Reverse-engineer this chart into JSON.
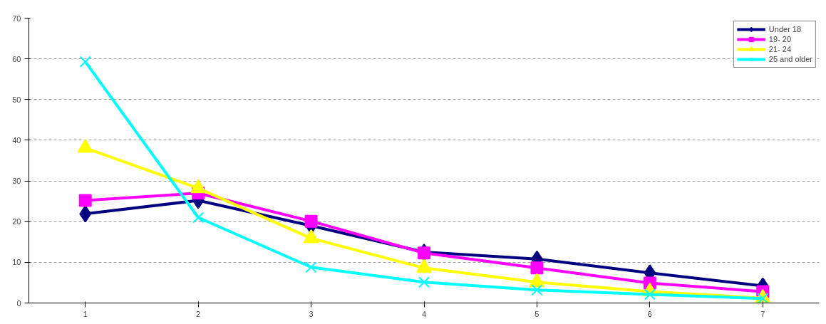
{
  "chart_data": {
    "type": "line",
    "categories": [
      "1",
      "2",
      "3",
      "4",
      "5",
      "6",
      "7"
    ],
    "series": [
      {
        "name": "Under 18",
        "color": "#000080",
        "marker": "diamond",
        "values": [
          21.9,
          25.2,
          19.0,
          12.5,
          10.8,
          7.4,
          4.2
        ]
      },
      {
        "name": "19- 20",
        "color": "#ff00ff",
        "marker": "square",
        "values": [
          25.2,
          27.0,
          20.1,
          12.3,
          8.6,
          4.9,
          2.8
        ]
      },
      {
        "name": "21- 24",
        "color": "#ffff00",
        "marker": "triangle",
        "values": [
          38.1,
          28.2,
          15.9,
          8.6,
          5.1,
          2.8,
          1.2
        ]
      },
      {
        "name": "25 and older",
        "color": "#00ffff",
        "marker": "cross",
        "values": [
          59.3,
          21.0,
          8.8,
          5.1,
          3.2,
          2.1,
          1.1
        ]
      }
    ],
    "ylim": [
      0,
      70
    ],
    "yticks": [
      0,
      10,
      20,
      30,
      40,
      50,
      60,
      70
    ],
    "grid": "y",
    "legend": "top right",
    "line_style": "solid"
  }
}
